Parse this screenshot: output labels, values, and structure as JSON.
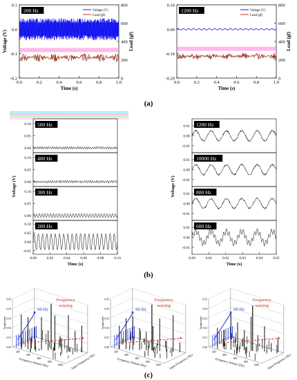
{
  "panel_labels": {
    "a": "(a)",
    "b": "(b)",
    "c": "(c)"
  },
  "colors": {
    "voltage": "#1010ee",
    "load": "#c03010",
    "load_band": "#ff66cc",
    "black": "#000000",
    "gray": "#666666",
    "arrow_blue": "#2233dd",
    "arrow_red": "#cc3322"
  },
  "chart_data": [
    {
      "id": "a1",
      "type": "line",
      "tag": "200 Hz",
      "xlabel": "Time (s)",
      "ylabel": "Voltage (V)",
      "y2label": "Load (gf)",
      "xlim": [
        0,
        1.0
      ],
      "ylim": [
        -0.2,
        0.1
      ],
      "y2lim": [
        0,
        800
      ],
      "xticks": [
        "0.0",
        "0.2",
        "0.4",
        "0.6",
        "0.8",
        "1.0"
      ],
      "yticks": [
        "-0.2",
        "-0.1",
        "0.0",
        "0.1"
      ],
      "y2ticks": [
        "0",
        "200",
        "400",
        "600",
        "800"
      ],
      "legend": [
        "Voltage (V)",
        "Load (gf)"
      ],
      "series": [
        {
          "name": "Voltage (V)",
          "center": 0.0,
          "amplitude": 0.045
        },
        {
          "name": "Load (gf)",
          "center": -0.115,
          "amplitude": 0.018
        }
      ]
    },
    {
      "id": "a2",
      "type": "line",
      "tag": "1200 Hz",
      "xlabel": "Time (s)",
      "ylabel": "",
      "y2label": "Load (gf)",
      "xlim": [
        0,
        1.0
      ],
      "ylim": [
        -0.2,
        0.1
      ],
      "y2lim": [
        0,
        800
      ],
      "xticks": [
        "0.0",
        "0.2",
        "0.4",
        "0.6",
        "0.8",
        "1.0"
      ],
      "yticks": [
        "-0.20",
        "-0.10",
        "0.00",
        "0.10"
      ],
      "y2ticks": [
        "0",
        "200",
        "400",
        "600",
        "800"
      ],
      "legend": [
        "Voltage (V)",
        "Load (gf)"
      ],
      "series": [
        {
          "name": "Voltage (V)",
          "center": 0.0,
          "amplitude": 0.003
        },
        {
          "name": "Load (gf)",
          "center": -0.11,
          "amplitude": 0.015
        }
      ]
    },
    {
      "id": "b1",
      "type": "line",
      "xlabel": "Time (s)",
      "ylabel": "Voltage (V)",
      "xlim": [
        0,
        0.1
      ],
      "xticks": [
        "0.00",
        "0.02",
        "0.04",
        "0.06",
        "0.08",
        "0.10"
      ],
      "subplots": [
        {
          "tag": "500 Hz",
          "yticks": [
            "0.10",
            "0.05",
            "0.00"
          ],
          "ylim": [
            -0.02,
            0.12
          ],
          "center": 0.0,
          "amplitude": 0.004
        },
        {
          "tag": "400 Hz",
          "yticks": [
            "0.10",
            "0.05",
            "0.00"
          ],
          "ylim": [
            -0.02,
            0.12
          ],
          "center": 0.0,
          "amplitude": 0.004
        },
        {
          "tag": "300 Hz",
          "yticks": [
            "0.10",
            "0.05",
            "0.00"
          ],
          "ylim": [
            -0.02,
            0.12
          ],
          "center": 0.0,
          "amplitude": 0.008
        },
        {
          "tag": "200 Hz",
          "yticks": [
            "0.10",
            "0.05",
            "0.00",
            "-0.05"
          ],
          "ylim": [
            -0.07,
            0.12
          ],
          "center": 0.0,
          "amplitude": 0.045
        }
      ]
    },
    {
      "id": "b2",
      "type": "line",
      "xlabel": "Time (s)",
      "ylabel": "Voltage (V)",
      "xlim": [
        0,
        0.05
      ],
      "xticks": [
        "0.00",
        "0.01",
        "0.02",
        "0.03",
        "0.04",
        "0.05"
      ],
      "subplots": [
        {
          "tag": "1200 Hz",
          "yticks": [
            "0.01",
            "0.00",
            "-0.01"
          ],
          "ylim": [
            -0.017,
            0.017
          ],
          "center": 0.0,
          "amplitude": 0.005
        },
        {
          "tag": "10000 Hz",
          "yticks": [
            "0.01",
            "0.00",
            "-0.01"
          ],
          "ylim": [
            -0.017,
            0.017
          ],
          "center": 0.0,
          "amplitude": 0.005
        },
        {
          "tag": "800 Hz",
          "yticks": [
            "0.01",
            "0.00",
            "-0.01"
          ],
          "ylim": [
            -0.017,
            0.017
          ],
          "center": 0.0,
          "amplitude": 0.005
        },
        {
          "tag": "600 Hz",
          "yticks": [
            "0.01",
            "0.00",
            "-0.01"
          ],
          "ylim": [
            -0.017,
            0.017
          ],
          "center": 0.0,
          "amplitude": 0.006
        }
      ]
    },
    {
      "id": "c1",
      "type": "bar",
      "annotations": [
        "60 Hz",
        "Frequency sensing"
      ],
      "xlabel": "Frequency domain (Hz)",
      "ylabel": "Amplitude",
      "zlabel": "Input Frequency (Hz)",
      "zticks": [
        "0.05",
        "0.04",
        "0.03",
        "0.02",
        "0.01",
        "0.00"
      ],
      "xticks": [
        "200",
        "400",
        "600",
        "800",
        "1000"
      ]
    },
    {
      "id": "c2",
      "type": "bar",
      "annotations": [
        "60 Hz",
        "Frequency sensing"
      ],
      "xlabel": "Frequency domain (Hz)",
      "ylabel": "Amplitude",
      "zlabel": "Input Frequency (Hz)",
      "zticks": [
        "0.05",
        "0.04",
        "0.03",
        "0.02",
        "0.01",
        "0.00"
      ],
      "xticks": [
        "200",
        "400",
        "600",
        "800",
        "1000"
      ]
    },
    {
      "id": "c3",
      "type": "bar",
      "annotations": [
        "60 Hz",
        "Frequency sensing"
      ],
      "xlabel": "Frequency domain (Hz)",
      "ylabel": "Amplitude",
      "zlabel": "Input Frequency (Hz)",
      "zticks": [
        "0.05",
        "0.04",
        "0.03",
        "0.02",
        "0.01",
        "0.00"
      ],
      "xticks": [
        "200",
        "400",
        "600",
        "800",
        "1000"
      ]
    }
  ]
}
